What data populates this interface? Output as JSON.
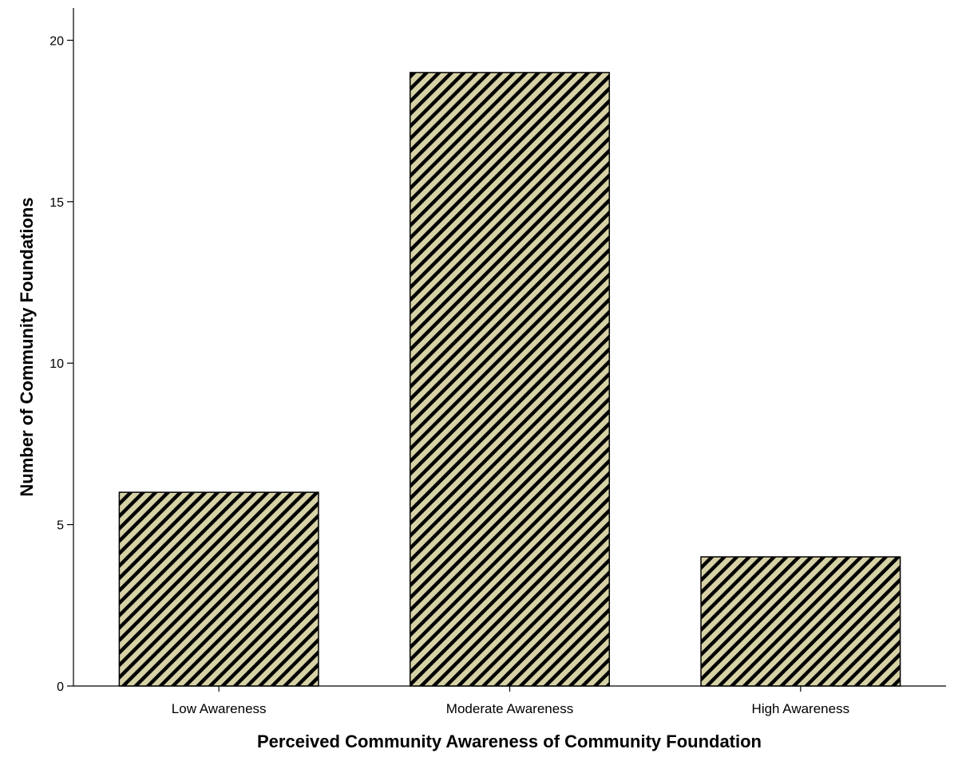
{
  "chart_data": {
    "type": "bar",
    "title": "",
    "xlabel": "Perceived Community Awareness of Community Foundation",
    "ylabel": "Number of Community Foundations",
    "categories": [
      "Low Awareness",
      "Moderate Awareness",
      "High Awareness"
    ],
    "values": [
      6,
      19,
      4
    ],
    "ylim": [
      0,
      21
    ],
    "yticks": [
      0,
      5,
      10,
      15,
      20
    ],
    "grid": false,
    "legend": "none",
    "bar_fill": "#d6d2a6",
    "bar_hatch": "#000000",
    "bar_stroke": "#000000"
  }
}
